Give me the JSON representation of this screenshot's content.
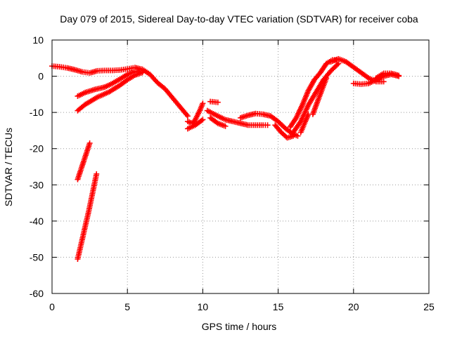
{
  "chart_data": {
    "type": "scatter",
    "title": "Day 079 of 2015, Sidereal Day-to-day VTEC variation (SDTVAR) for receiver coba",
    "xlabel": "GPS time / hours",
    "ylabel": "SDTVAR / TECUs",
    "xlim": [
      0,
      25
    ],
    "ylim": [
      -60,
      10
    ],
    "xticks": [
      "0",
      "5",
      "10",
      "15",
      "20",
      "25"
    ],
    "yticks": [
      "10",
      "0",
      "-10",
      "-20",
      "-30",
      "-40",
      "-50",
      "-60"
    ],
    "grid": true,
    "marker": "plus",
    "color": "#ff0000",
    "series": [
      {
        "name": "track-top",
        "points": [
          [
            0.0,
            2.8
          ],
          [
            0.5,
            2.6
          ],
          [
            1.0,
            2.3
          ],
          [
            1.5,
            1.8
          ],
          [
            2.0,
            1.2
          ],
          [
            2.5,
            0.9
          ],
          [
            3.0,
            1.5
          ],
          [
            3.5,
            1.6
          ],
          [
            4.0,
            1.6
          ],
          [
            4.5,
            1.7
          ],
          [
            5.0,
            2.0
          ],
          [
            5.5,
            2.4
          ],
          [
            6.0,
            1.9
          ],
          [
            6.5,
            0.5
          ],
          [
            7.0,
            -1.8
          ],
          [
            7.5,
            -3.5
          ],
          [
            8.0,
            -6.0
          ],
          [
            8.5,
            -8.5
          ],
          [
            9.0,
            -11.0
          ]
        ]
      },
      {
        "name": "track-rise-a",
        "points": [
          [
            1.7,
            -5.5
          ],
          [
            2.2,
            -4.5
          ],
          [
            2.8,
            -3.7
          ],
          [
            3.5,
            -3.0
          ],
          [
            4.0,
            -2.0
          ],
          [
            4.5,
            -0.8
          ],
          [
            5.0,
            0.5
          ],
          [
            5.5,
            1.3
          ],
          [
            6.0,
            1.2
          ]
        ]
      },
      {
        "name": "track-rise-b",
        "points": [
          [
            1.7,
            -9.5
          ],
          [
            2.2,
            -7.8
          ],
          [
            3.0,
            -5.8
          ],
          [
            3.8,
            -4.3
          ],
          [
            4.5,
            -2.5
          ],
          [
            5.0,
            -1.0
          ],
          [
            5.5,
            0.3
          ],
          [
            6.0,
            1.0
          ]
        ]
      },
      {
        "name": "track-steep-upper",
        "points": [
          [
            1.7,
            -28.5
          ],
          [
            1.9,
            -26.0
          ],
          [
            2.1,
            -23.5
          ],
          [
            2.3,
            -21.0
          ],
          [
            2.5,
            -18.5
          ]
        ]
      },
      {
        "name": "track-steep-lower",
        "points": [
          [
            1.7,
            -50.5
          ],
          [
            1.95,
            -46.0
          ],
          [
            2.2,
            -41.5
          ],
          [
            2.45,
            -37.0
          ],
          [
            2.7,
            -32.0
          ],
          [
            2.95,
            -27.0
          ]
        ]
      },
      {
        "name": "track-mid-a",
        "points": [
          [
            9.0,
            -12.5
          ],
          [
            9.3,
            -13.0
          ],
          [
            9.5,
            -12.0
          ],
          [
            9.8,
            -9.5
          ],
          [
            10.0,
            -7.5
          ]
        ]
      },
      {
        "name": "track-mid-b",
        "points": [
          [
            9.0,
            -14.5
          ],
          [
            9.5,
            -13.5
          ],
          [
            10.0,
            -12.0
          ]
        ]
      },
      {
        "name": "track-mid-c",
        "points": [
          [
            10.5,
            -7.0
          ],
          [
            11.0,
            -7.2
          ]
        ]
      },
      {
        "name": "track-mid-d",
        "points": [
          [
            10.3,
            -9.5
          ],
          [
            11.0,
            -11.0
          ],
          [
            11.5,
            -12.0
          ],
          [
            12.0,
            -12.5
          ],
          [
            12.5,
            -13.0
          ],
          [
            13.0,
            -13.5
          ],
          [
            13.5,
            -13.5
          ],
          [
            14.0,
            -13.5
          ],
          [
            14.3,
            -13.5
          ]
        ]
      },
      {
        "name": "track-mid-e",
        "points": [
          [
            10.5,
            -11.5
          ],
          [
            11.0,
            -13.0
          ],
          [
            11.5,
            -13.8
          ]
        ]
      },
      {
        "name": "track-mid-f",
        "points": [
          [
            12.5,
            -11.5
          ],
          [
            13.0,
            -10.8
          ],
          [
            13.5,
            -10.3
          ],
          [
            14.0,
            -10.5
          ],
          [
            14.5,
            -11.0
          ],
          [
            15.0,
            -12.5
          ],
          [
            15.5,
            -14.5
          ],
          [
            16.0,
            -16.0
          ],
          [
            16.3,
            -16.5
          ]
        ]
      },
      {
        "name": "track-dip",
        "points": [
          [
            14.8,
            -13.5
          ],
          [
            15.2,
            -15.5
          ],
          [
            15.6,
            -17.0
          ],
          [
            16.0,
            -16.5
          ]
        ]
      },
      {
        "name": "track-climb-a",
        "points": [
          [
            15.8,
            -14.0
          ],
          [
            16.2,
            -11.5
          ],
          [
            16.6,
            -8.0
          ],
          [
            17.0,
            -4.0
          ],
          [
            17.4,
            -1.0
          ],
          [
            17.8,
            1.0
          ],
          [
            18.2,
            3.5
          ],
          [
            18.6,
            4.5
          ],
          [
            19.0,
            4.5
          ]
        ]
      },
      {
        "name": "track-climb-b",
        "points": [
          [
            16.0,
            -15.5
          ],
          [
            16.5,
            -12.5
          ],
          [
            17.0,
            -8.0
          ],
          [
            17.5,
            -4.5
          ],
          [
            18.0,
            -1.0
          ],
          [
            18.5,
            1.5
          ],
          [
            19.0,
            3.5
          ]
        ]
      },
      {
        "name": "track-climb-c",
        "points": [
          [
            16.5,
            -15.5
          ],
          [
            16.8,
            -12.5
          ],
          [
            17.0,
            -10.5
          ]
        ]
      },
      {
        "name": "track-climb-d",
        "points": [
          [
            17.3,
            -10.5
          ],
          [
            17.7,
            -6.0
          ],
          [
            18.2,
            -0.5
          ]
        ]
      },
      {
        "name": "track-peak",
        "points": [
          [
            18.5,
            4.0
          ],
          [
            19.0,
            4.8
          ],
          [
            19.5,
            4.0
          ],
          [
            20.0,
            2.5
          ],
          [
            20.5,
            1.0
          ],
          [
            21.0,
            -0.5
          ],
          [
            21.5,
            -1.5
          ],
          [
            22.0,
            -1.5
          ]
        ]
      },
      {
        "name": "track-end-a",
        "points": [
          [
            20.0,
            -2.0
          ],
          [
            20.5,
            -2.2
          ],
          [
            21.0,
            -2.0
          ],
          [
            21.5,
            -1.0
          ],
          [
            22.0,
            0.0
          ],
          [
            22.5,
            0.5
          ],
          [
            23.0,
            0.0
          ]
        ]
      },
      {
        "name": "track-end-b",
        "points": [
          [
            21.5,
            -0.5
          ],
          [
            22.0,
            0.8
          ],
          [
            22.5,
            0.8
          ],
          [
            23.0,
            0.2
          ]
        ]
      }
    ]
  }
}
